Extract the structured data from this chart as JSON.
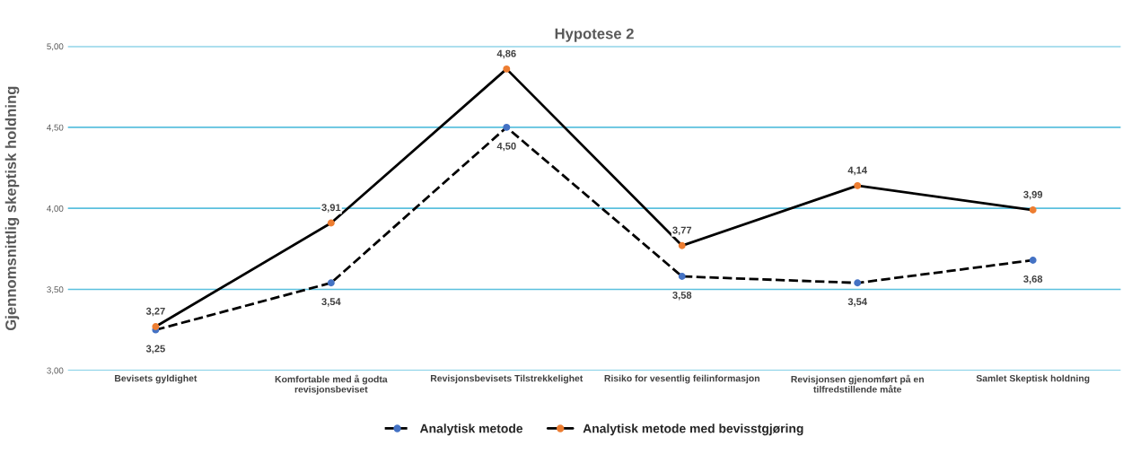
{
  "chart_data": {
    "type": "line",
    "title": "Hypotese 2",
    "ylabel": "Gjennomsnittlig skeptisk holdning",
    "categories": [
      "Bevisets gyldighet",
      "Komfortable med å godta\nrevisjonsbeviset",
      "Revisjonsbevisets Tilstrekkelighet",
      "Risiko for vesentlig feilinformasjon",
      "Revisjonsen gjenomført på en\ntilfredstillende måte",
      "Samlet Skeptisk holdning"
    ],
    "series": [
      {
        "name": "Analytisk metode",
        "color": "#000000",
        "colors": [
          "#4472c4",
          "#4472c4",
          "#4472c4",
          "#4472c4",
          "#4472c4",
          "#4472c4"
        ],
        "line_style": "dashed",
        "values": [
          3.25,
          3.54,
          4.5,
          3.58,
          3.54,
          3.68
        ],
        "value_labels": [
          "3,25",
          "3,54",
          "4,50",
          "3,58",
          "3,54",
          "3,68"
        ]
      },
      {
        "name": "Analytisk metode med bevisstgjøring",
        "color": "#000000",
        "colors": [
          "#ed7d31",
          "#ed7d31",
          "#ed7d31",
          "#ed7d31",
          "#ed7d31",
          "#ed7d31"
        ],
        "line_style": "solid",
        "values": [
          3.27,
          3.91,
          4.86,
          3.77,
          4.14,
          3.99
        ],
        "value_labels": [
          "3,27",
          "3,91",
          "4,86",
          "3,77",
          "4,14",
          "3,99"
        ]
      }
    ],
    "ylim": [
      3,
      5
    ],
    "yticks": [
      {
        "value": 3,
        "label": "3,00"
      },
      {
        "value": 3.5,
        "label": "3,50"
      },
      {
        "value": 4,
        "label": "4,00"
      },
      {
        "value": 4.5,
        "label": "4,50"
      },
      {
        "value": 5,
        "label": "5,00"
      }
    ],
    "grid": "y",
    "legend": "bottom",
    "marker": "circle"
  }
}
